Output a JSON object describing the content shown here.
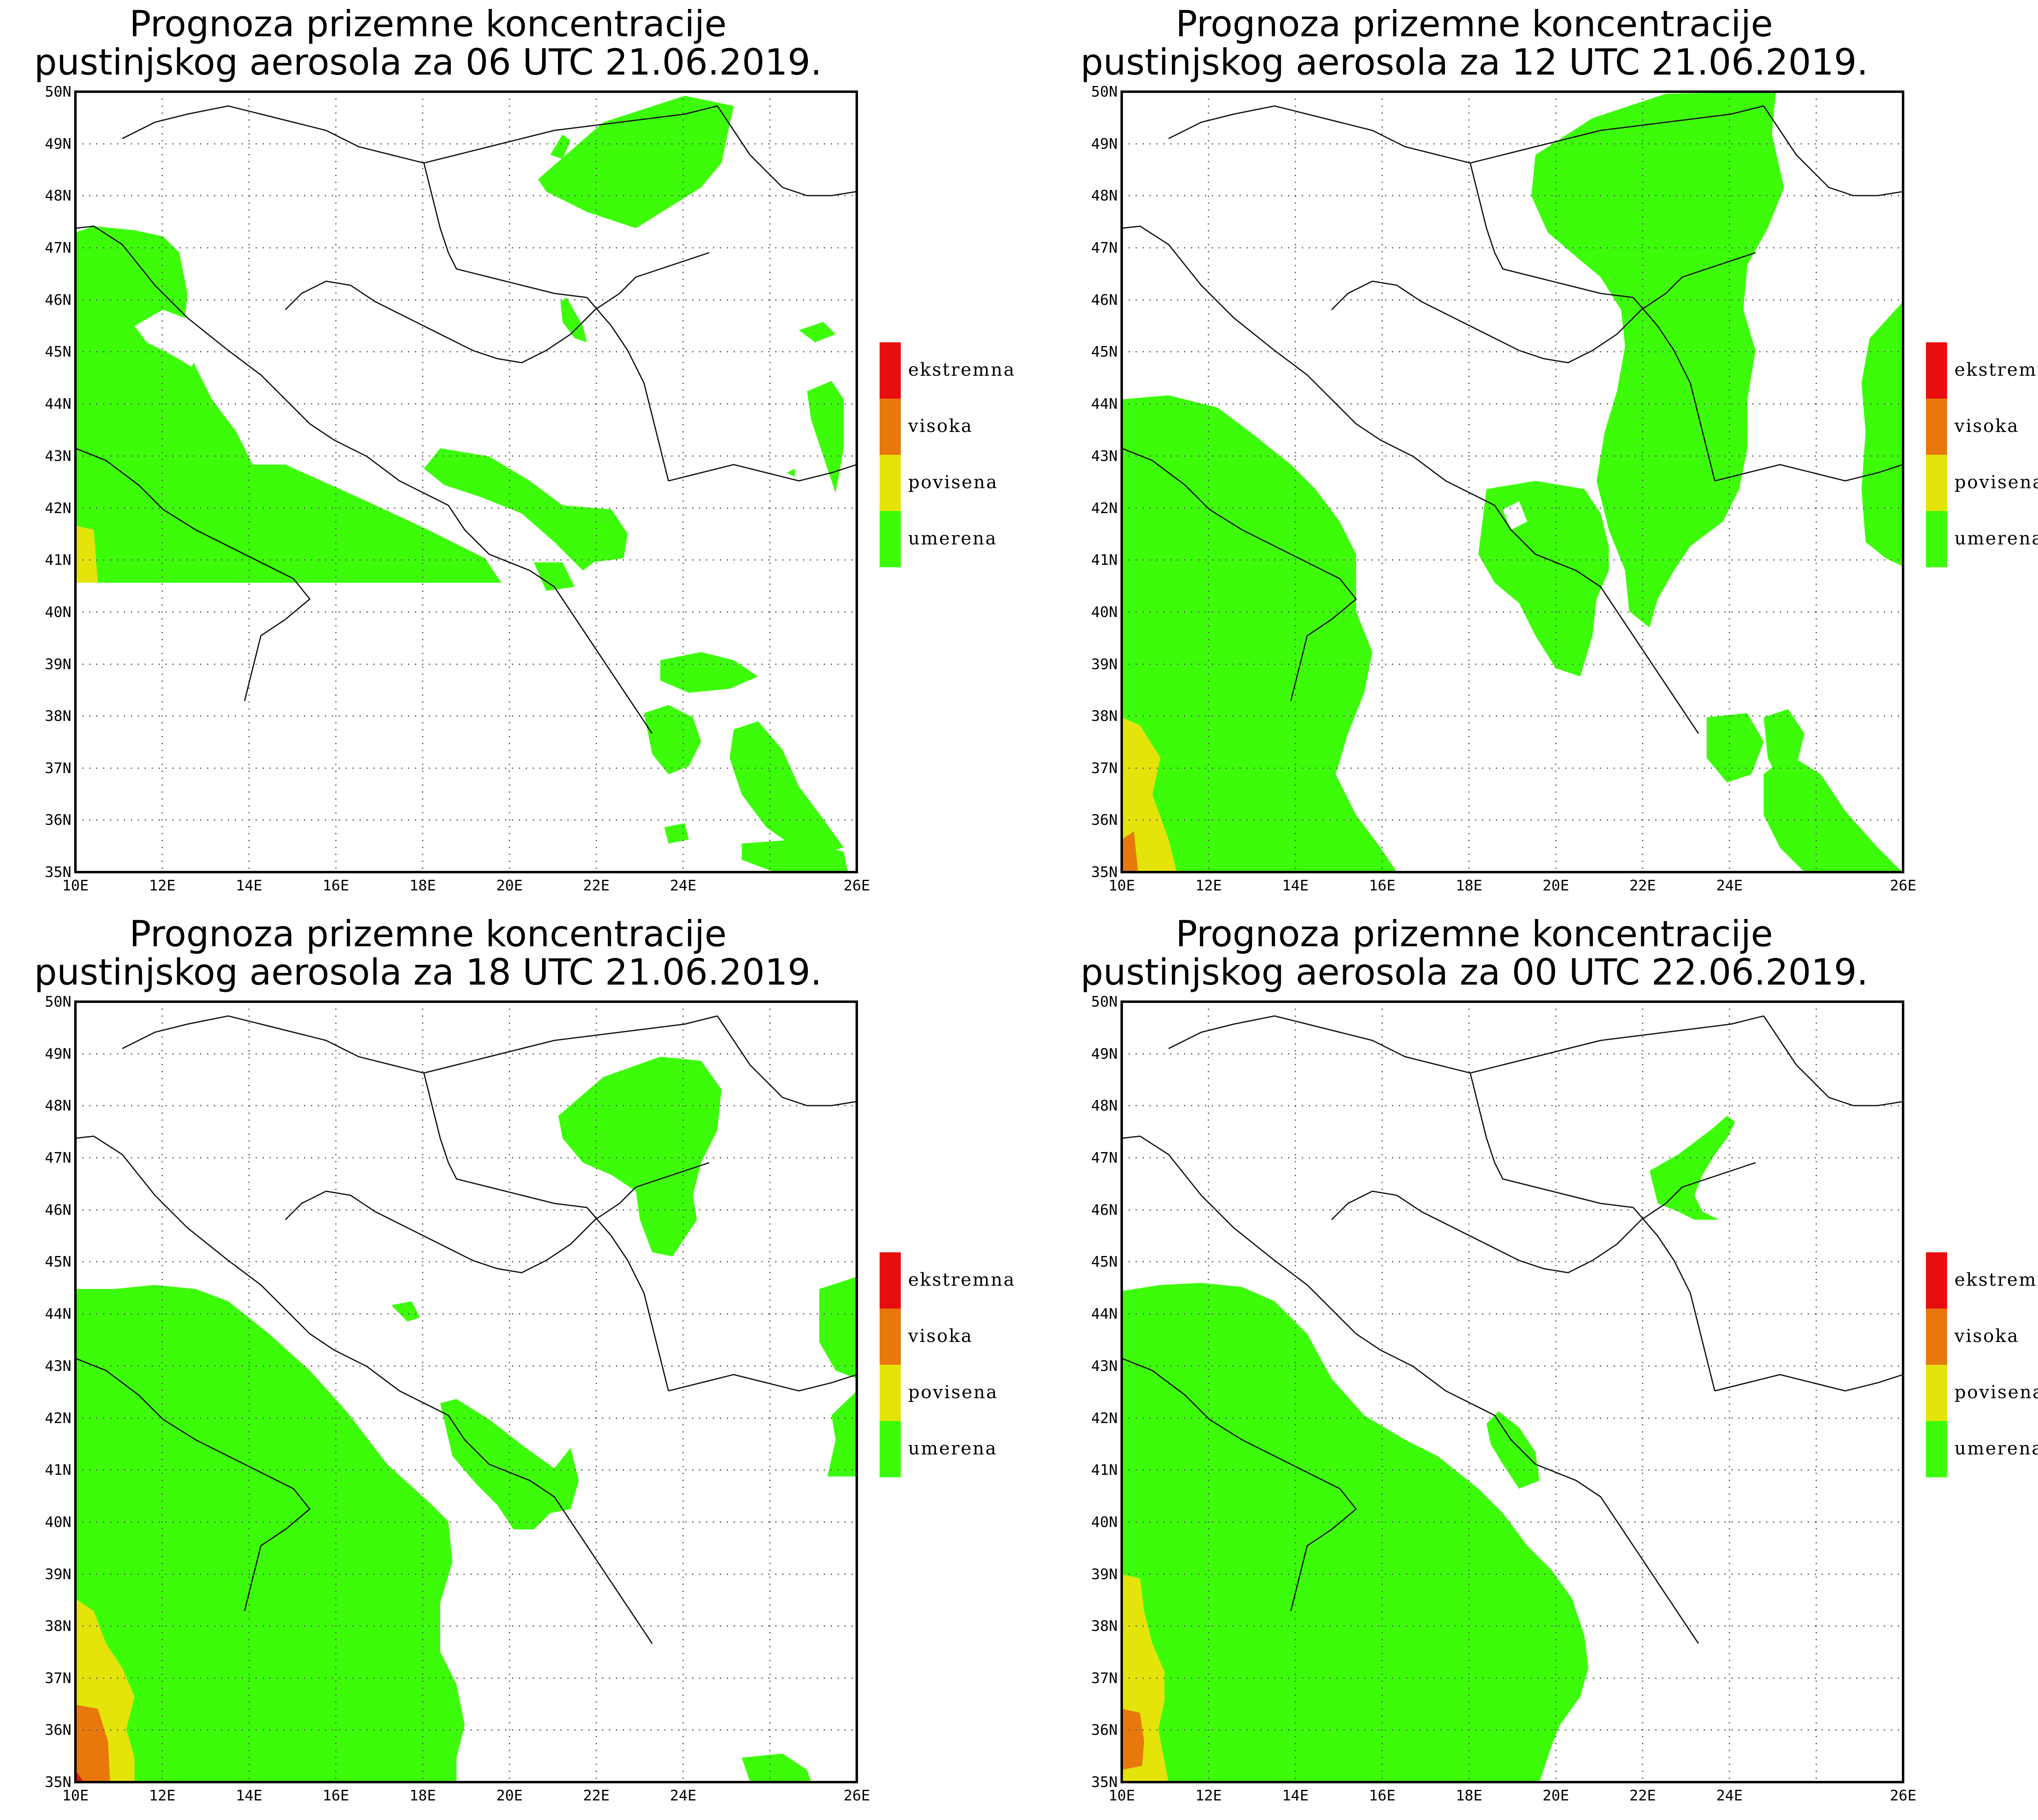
{
  "map": {
    "lon_range": [
      10,
      26
    ],
    "lat_range": [
      35,
      50
    ],
    "lon_ticks": [
      "10E",
      "12E",
      "14E",
      "16E",
      "18E",
      "20E",
      "22E",
      "24E",
      "26E"
    ],
    "lat_ticks": [
      "35N",
      "36N",
      "37N",
      "38N",
      "39N",
      "40N",
      "41N",
      "42N",
      "43N",
      "44N",
      "45N",
      "46N",
      "47N",
      "48N",
      "49N",
      "50N"
    ]
  },
  "legend": {
    "items": [
      {
        "label": "ekstremna",
        "color": "#e60f0f"
      },
      {
        "label": "visoka",
        "color": "#e8780c"
      },
      {
        "label": "povisena",
        "color": "#e4e40a"
      },
      {
        "label": "umerena",
        "color": "#3dfc0a"
      }
    ]
  },
  "panels": [
    {
      "title_line1": "Prognoza prizemne koncentracije",
      "title_line2": "pustinjskog aerosola za 06 UTC 21.06.2019."
    },
    {
      "title_line1": "Prognoza prizemne koncentracije",
      "title_line2": "pustinjskog aerosola za 12 UTC 21.06.2019."
    },
    {
      "title_line1": "Prognoza prizemne koncentracije",
      "title_line2": "pustinjskog aerosola za 18 UTC 21.06.2019."
    },
    {
      "title_line1": "Prognoza prizemne koncentracije",
      "title_line2": "pustinjskog aerosola za 00 UTC 22.06.2019."
    }
  ]
}
